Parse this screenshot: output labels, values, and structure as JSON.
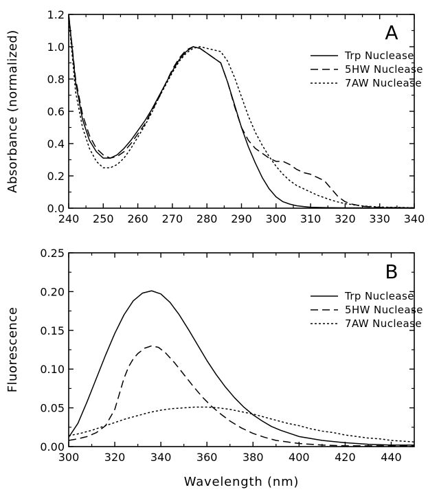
{
  "chart_data": [
    {
      "type": "line",
      "panel_label": "A",
      "xlabel": "",
      "ylabel": "Absorbance (normalized)",
      "xlim": [
        240,
        340
      ],
      "ylim": [
        0.0,
        1.2
      ],
      "xticks": [
        "240",
        "250",
        "260",
        "270",
        "280",
        "290",
        "300",
        "310",
        "320",
        "330",
        "340"
      ],
      "yticks": [
        "0.0",
        "0.2",
        "0.4",
        "0.6",
        "0.8",
        "1.0",
        "1.2"
      ],
      "legend_position": "right",
      "series": [
        {
          "name": "Trp Nuclease",
          "style": "solid",
          "x": [
            240,
            242,
            244,
            246,
            248,
            250,
            252,
            254,
            256,
            258,
            260,
            262,
            264,
            266,
            268,
            270,
            272,
            274,
            276,
            278,
            280,
            282,
            284,
            286,
            288,
            290,
            292,
            294,
            296,
            298,
            300,
            302,
            304,
            306,
            308,
            310,
            315,
            320,
            330,
            340
          ],
          "y": [
            1.2,
            0.78,
            0.55,
            0.42,
            0.35,
            0.31,
            0.31,
            0.33,
            0.37,
            0.42,
            0.48,
            0.54,
            0.61,
            0.69,
            0.77,
            0.85,
            0.92,
            0.97,
            1.0,
            0.99,
            0.96,
            0.93,
            0.9,
            0.78,
            0.64,
            0.5,
            0.38,
            0.28,
            0.19,
            0.12,
            0.07,
            0.04,
            0.025,
            0.015,
            0.01,
            0.006,
            0.003,
            0.002,
            0.002,
            0.002
          ]
        },
        {
          "name": "5HW Nuclease",
          "style": "dashed",
          "x": [
            240,
            242,
            244,
            246,
            248,
            250,
            252,
            254,
            256,
            258,
            260,
            262,
            264,
            266,
            268,
            270,
            272,
            274,
            276,
            278,
            280,
            282,
            284,
            286,
            288,
            290,
            292,
            294,
            296,
            298,
            300,
            302,
            304,
            306,
            308,
            310,
            312,
            314,
            316,
            318,
            320,
            322,
            325,
            330,
            340
          ],
          "y": [
            1.2,
            0.8,
            0.58,
            0.45,
            0.37,
            0.33,
            0.31,
            0.32,
            0.35,
            0.4,
            0.46,
            0.52,
            0.6,
            0.68,
            0.77,
            0.86,
            0.93,
            0.98,
            1.0,
            0.99,
            0.96,
            0.93,
            0.9,
            0.78,
            0.63,
            0.5,
            0.42,
            0.37,
            0.34,
            0.31,
            0.29,
            0.29,
            0.27,
            0.24,
            0.22,
            0.21,
            0.19,
            0.17,
            0.12,
            0.07,
            0.04,
            0.025,
            0.012,
            0.005,
            0.002
          ]
        },
        {
          "name": "7AW Nuclease",
          "style": "dotted",
          "x": [
            240,
            242,
            244,
            246,
            248,
            250,
            252,
            254,
            256,
            258,
            260,
            262,
            264,
            266,
            268,
            270,
            272,
            274,
            276,
            278,
            280,
            282,
            284,
            286,
            288,
            290,
            292,
            294,
            296,
            298,
            300,
            302,
            304,
            306,
            308,
            310,
            312,
            314,
            316,
            318,
            320,
            325,
            330,
            340
          ],
          "y": [
            1.18,
            0.72,
            0.5,
            0.37,
            0.29,
            0.25,
            0.25,
            0.27,
            0.31,
            0.37,
            0.44,
            0.51,
            0.59,
            0.68,
            0.76,
            0.84,
            0.91,
            0.96,
            0.99,
            1.0,
            0.99,
            0.98,
            0.97,
            0.91,
            0.81,
            0.69,
            0.57,
            0.47,
            0.39,
            0.32,
            0.26,
            0.21,
            0.17,
            0.14,
            0.12,
            0.1,
            0.08,
            0.065,
            0.05,
            0.038,
            0.028,
            0.014,
            0.007,
            0.003
          ]
        }
      ]
    },
    {
      "type": "line",
      "panel_label": "B",
      "xlabel": "Wavelength (nm)",
      "ylabel": "Fluorescence",
      "xlim": [
        300,
        450
      ],
      "ylim": [
        0.0,
        0.25
      ],
      "xticks": [
        "300",
        "320",
        "340",
        "360",
        "380",
        "400",
        "420",
        "440"
      ],
      "yticks": [
        "0.00",
        "0.05",
        "0.10",
        "0.15",
        "0.20",
        "0.25"
      ],
      "legend_position": "right",
      "series": [
        {
          "name": "Trp Nuclease",
          "style": "solid",
          "x": [
            300,
            304,
            308,
            312,
            316,
            320,
            324,
            328,
            332,
            336,
            340,
            344,
            348,
            352,
            356,
            360,
            364,
            368,
            372,
            376,
            380,
            384,
            388,
            392,
            396,
            400,
            410,
            420,
            430,
            440,
            450
          ],
          "y": [
            0.012,
            0.03,
            0.058,
            0.088,
            0.118,
            0.146,
            0.17,
            0.188,
            0.198,
            0.201,
            0.197,
            0.186,
            0.17,
            0.151,
            0.131,
            0.111,
            0.093,
            0.077,
            0.063,
            0.051,
            0.041,
            0.033,
            0.026,
            0.021,
            0.017,
            0.013,
            0.008,
            0.005,
            0.003,
            0.002,
            0.002
          ]
        },
        {
          "name": "5HW Nuclease",
          "style": "dashed",
          "x": [
            300,
            304,
            308,
            312,
            316,
            320,
            322,
            324,
            326,
            328,
            330,
            333,
            336,
            339,
            342,
            346,
            350,
            354,
            358,
            362,
            366,
            370,
            375,
            380,
            385,
            390,
            395,
            400,
            410,
            420,
            430,
            450
          ],
          "y": [
            0.008,
            0.01,
            0.013,
            0.018,
            0.027,
            0.048,
            0.068,
            0.088,
            0.103,
            0.113,
            0.12,
            0.127,
            0.13,
            0.128,
            0.121,
            0.108,
            0.093,
            0.078,
            0.064,
            0.052,
            0.042,
            0.033,
            0.024,
            0.017,
            0.012,
            0.008,
            0.006,
            0.004,
            0.002,
            0.001,
            0.001,
            0.001
          ]
        },
        {
          "name": "7AW Nuclease",
          "style": "dotted",
          "x": [
            300,
            305,
            310,
            315,
            320,
            325,
            330,
            335,
            340,
            345,
            350,
            355,
            360,
            365,
            370,
            375,
            380,
            385,
            390,
            395,
            400,
            405,
            410,
            415,
            420,
            425,
            430,
            435,
            440,
            445,
            450
          ],
          "y": [
            0.014,
            0.017,
            0.021,
            0.026,
            0.031,
            0.036,
            0.04,
            0.044,
            0.047,
            0.049,
            0.05,
            0.051,
            0.051,
            0.05,
            0.048,
            0.045,
            0.042,
            0.038,
            0.034,
            0.03,
            0.027,
            0.023,
            0.02,
            0.018,
            0.015,
            0.013,
            0.011,
            0.01,
            0.008,
            0.007,
            0.006
          ]
        }
      ]
    }
  ]
}
